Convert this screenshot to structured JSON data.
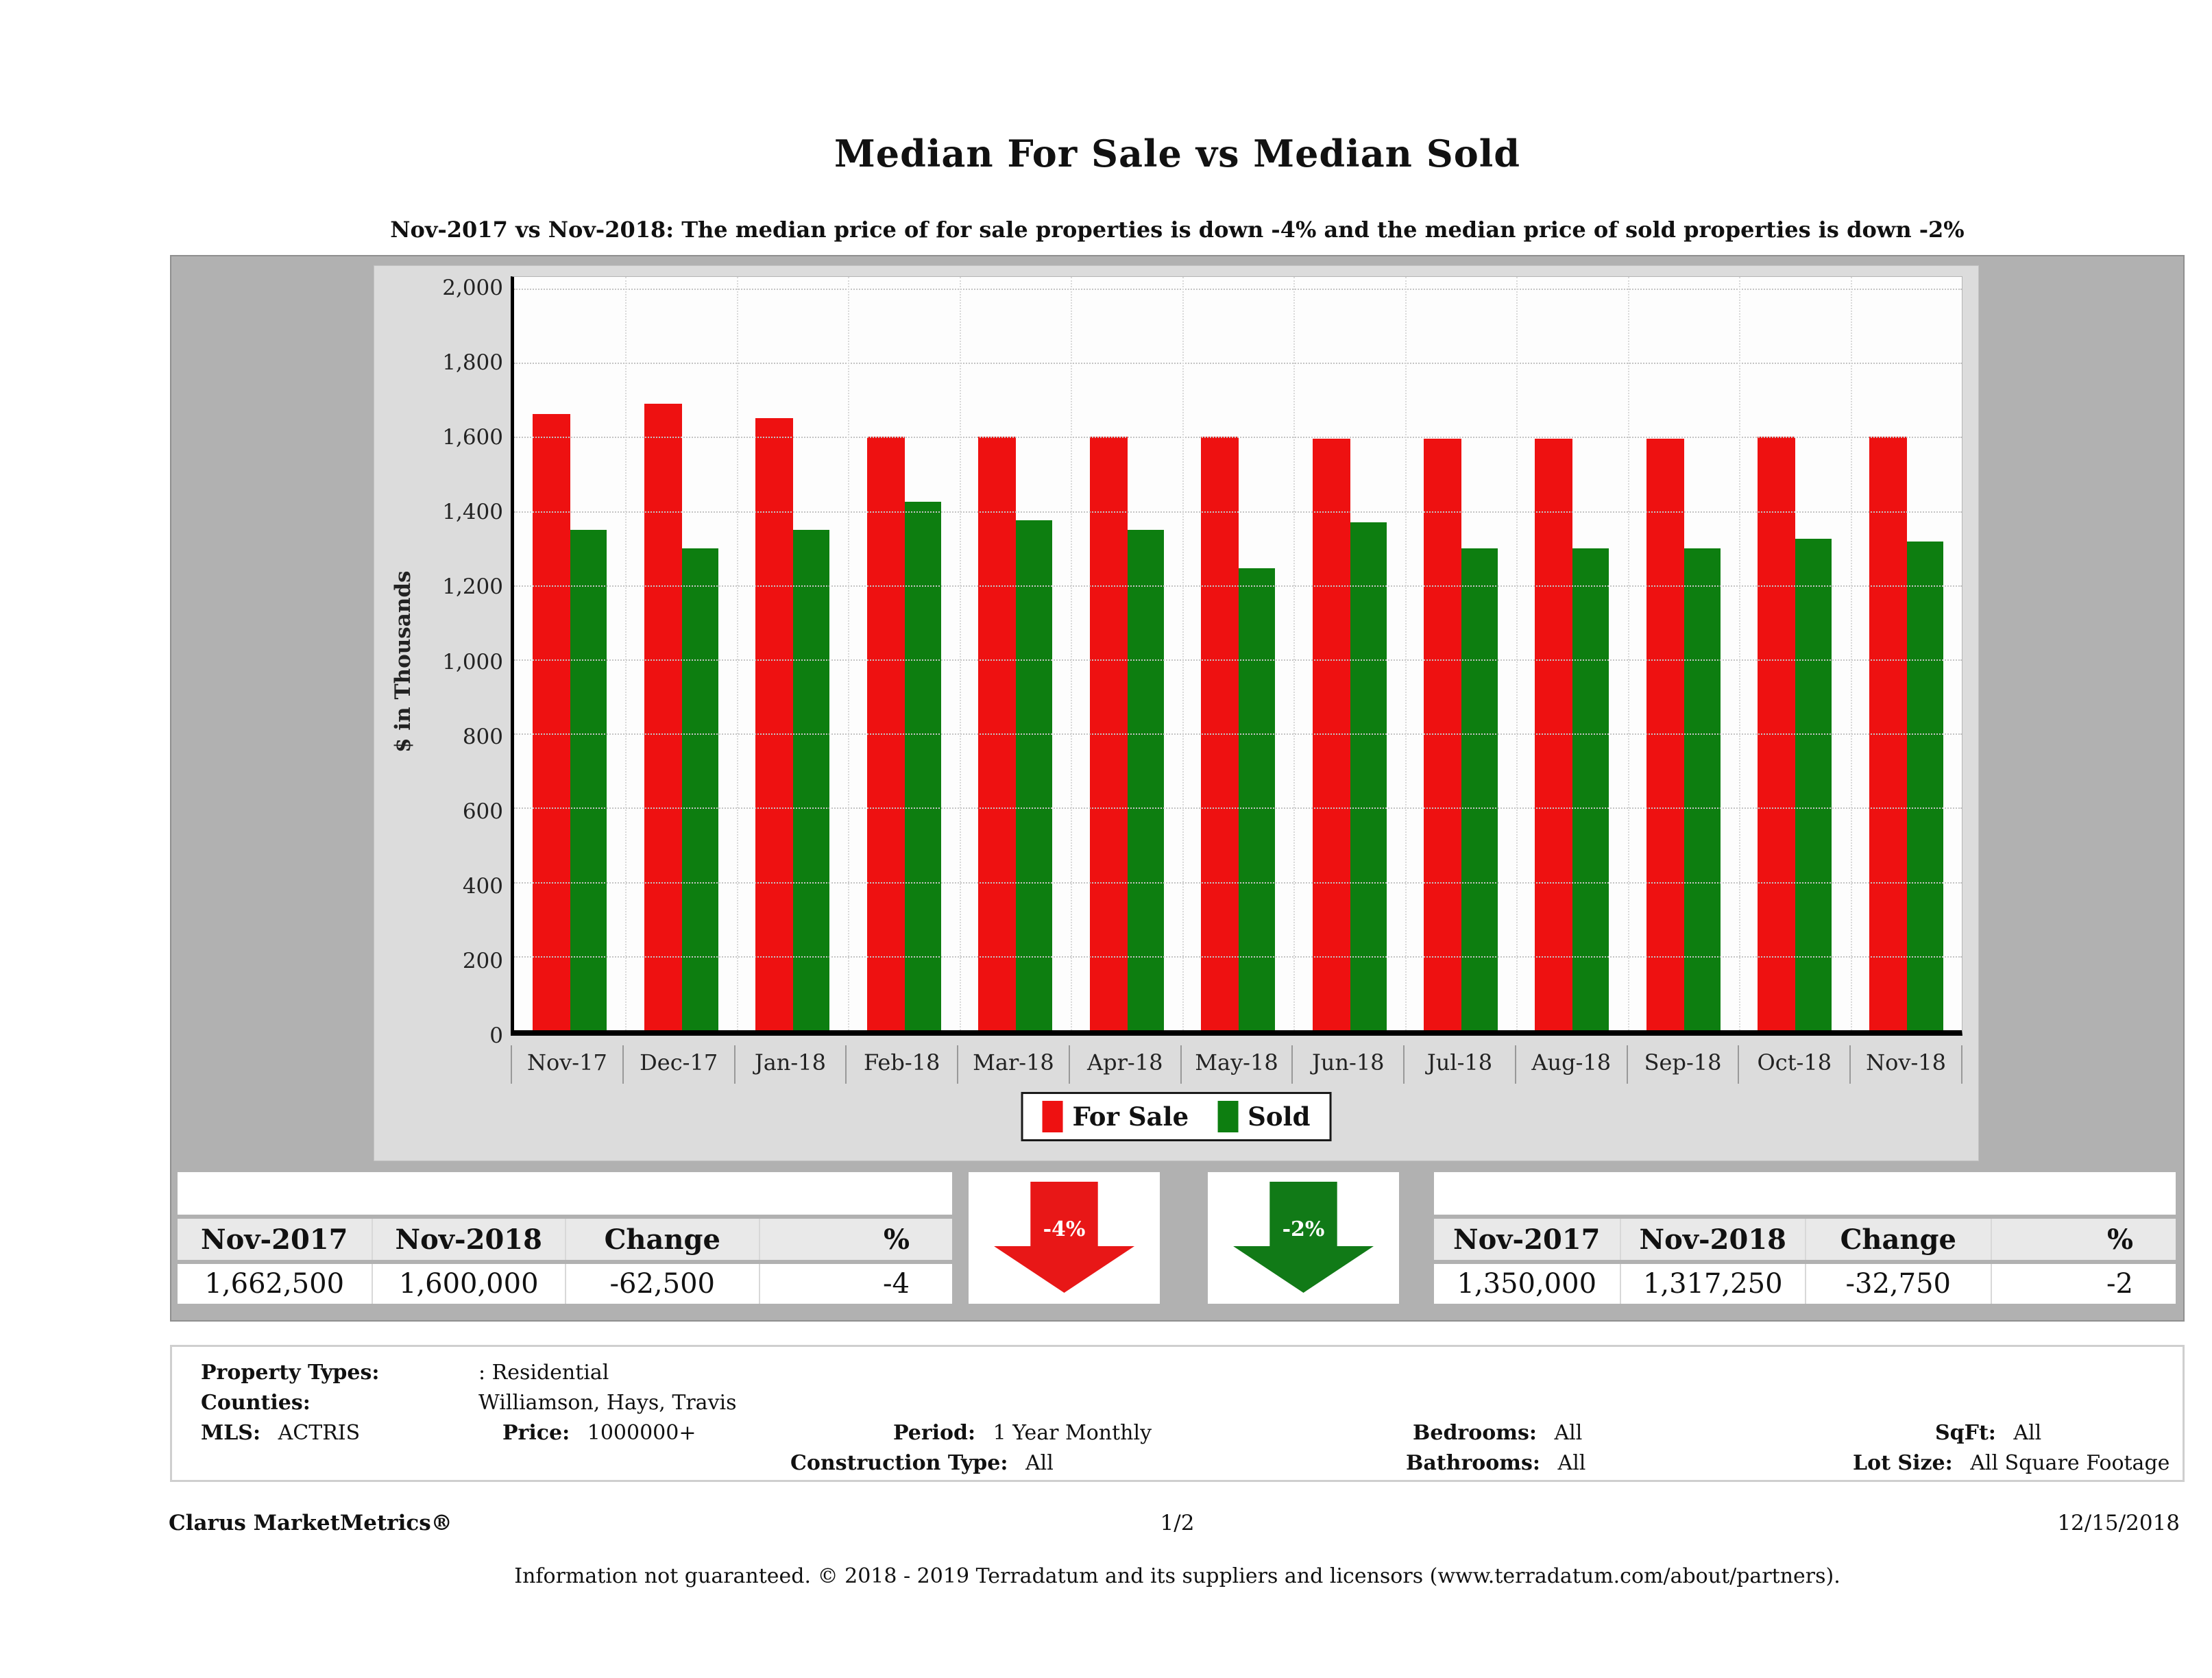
{
  "report": {
    "title": "Median For Sale vs Median Sold",
    "subtitle": "Nov-2017 vs Nov-2018: The median price of for sale properties is down -4% and the median price of sold properties is down -2%"
  },
  "chart_data": {
    "type": "bar",
    "title": "Median For Sale vs Median Sold",
    "categories": [
      "Nov-17",
      "Dec-17",
      "Jan-18",
      "Feb-18",
      "Mar-18",
      "Apr-18",
      "May-18",
      "Jun-18",
      "Jul-18",
      "Aug-18",
      "Sep-18",
      "Oct-18",
      "Nov-18"
    ],
    "series": [
      {
        "name": "For Sale",
        "color": "#ee1111",
        "values": [
          1662.5,
          1690,
          1650,
          1600,
          1600,
          1600,
          1600,
          1595,
          1595,
          1595,
          1595,
          1600,
          1600
        ]
      },
      {
        "name": "Sold",
        "color": "#0d7e10",
        "values": [
          1350,
          1300,
          1350,
          1425,
          1375,
          1350,
          1245,
          1370,
          1300,
          1300,
          1300,
          1325,
          1317.25
        ]
      }
    ],
    "xlabel": "",
    "ylabel": "$ in Thousands",
    "units": "thousands of dollars",
    "ylim": [
      0,
      2000
    ],
    "ytick_step": 200,
    "ytick_labels": [
      "0",
      "200",
      "400",
      "600",
      "800",
      "1,000",
      "1,200",
      "1,400",
      "1,600",
      "1,800",
      "2,000"
    ],
    "grid": true,
    "legend_position": "bottom"
  },
  "legend": {
    "items": [
      {
        "label": "For Sale",
        "color": "#ee1111"
      },
      {
        "label": "Sold",
        "color": "#0d7e10"
      }
    ]
  },
  "summary_tables": {
    "for_sale": {
      "headers": [
        "Nov-2017",
        "Nov-2018",
        "Change",
        "%"
      ],
      "row": [
        "1,662,500",
        "1,600,000",
        "-62,500",
        "-4"
      ]
    },
    "sold": {
      "headers": [
        "Nov-2017",
        "Nov-2018",
        "Change",
        "%"
      ],
      "row": [
        "1,350,000",
        "1,317,250",
        "-32,750",
        "-2"
      ]
    }
  },
  "arrows": {
    "for_sale": {
      "label": "-4%",
      "color": "#e81717",
      "direction": "down"
    },
    "sold": {
      "label": "-2%",
      "color": "#117a17",
      "direction": "down"
    }
  },
  "filters": {
    "property_types_label": "Property Types:",
    "property_types": ": Residential",
    "counties_label": "Counties:",
    "counties": "Williamson, Hays, Travis",
    "mls_label": "MLS:",
    "mls": "ACTRIS",
    "price_label": "Price:",
    "price": "1000000+",
    "period_label": "Period:",
    "period": "1 Year Monthly",
    "construction_type_label": "Construction Type:",
    "construction_type": "All",
    "bedrooms_label": "Bedrooms:",
    "bedrooms": "All",
    "bathrooms_label": "Bathrooms:",
    "bathrooms": "All",
    "sqft_label": "SqFt:",
    "sqft": "All",
    "lot_size_label": "Lot Size:",
    "lot_size": "All Square Footage"
  },
  "footer": {
    "brand": "Clarus MarketMetrics®",
    "page": "1/2",
    "date": "12/15/2018",
    "disclaimer": "Information not guaranteed. © 2018 - 2019 Terradatum and its suppliers and licensors (www.terradatum.com/about/partners)."
  },
  "colors": {
    "page_background": "#ffffff",
    "panel_background": "#b1b1b1",
    "chart_background": "#dcdcdc",
    "plot_background": "#fdfdfd",
    "for_sale_bar": "#ee1111",
    "sold_bar": "#0d7e10",
    "axis": "#000000",
    "gridline": "#c4c4c4",
    "table_header_background": "#e9e9e9"
  }
}
